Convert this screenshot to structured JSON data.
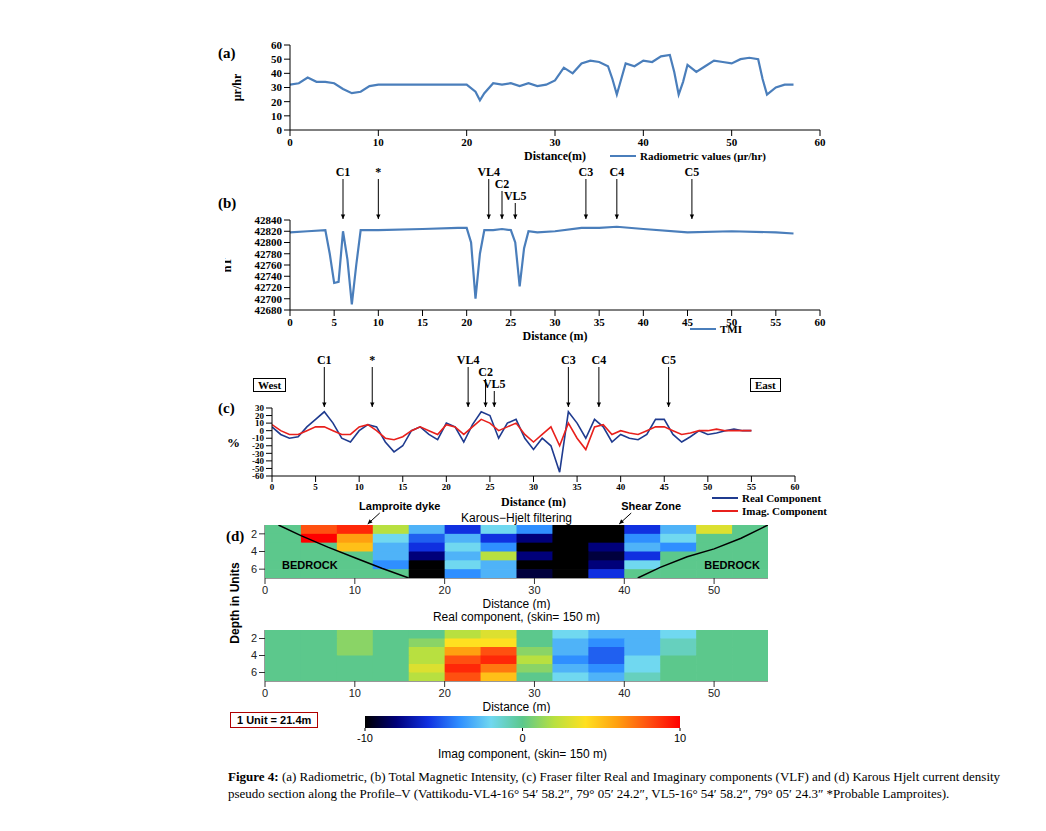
{
  "caption": {
    "label": "Figure 4:",
    "text": "(a) Radiometric, (b) Total Magnetic Intensity, (c) Fraser filter Real and Imaginary components (VLF) and (d) Karous Hjelt current density pseudo section along the Profile–V (Vattikodu-VL4-16° 54′ 58.2″, 79° 05′ 24.2″, VL5-16° 54′ 58.2″, 79° 05′ 24.3″ *Probable Lamproites)."
  },
  "chart_data": [
    {
      "type": "line",
      "title": "(a)",
      "x_label": "Distance(m)",
      "y_label": "μr/hr",
      "xlim": [
        0,
        60
      ],
      "xticks": [
        0,
        10,
        20,
        30,
        40,
        50,
        60
      ],
      "ylim": [
        0,
        60
      ],
      "yticks": [
        0,
        10,
        20,
        30,
        40,
        50,
        60
      ],
      "legend": "bottom right",
      "x": [
        0,
        1,
        2,
        3,
        4,
        5,
        6,
        7,
        8,
        9,
        10,
        12,
        14,
        16,
        18,
        20,
        21,
        21.5,
        22,
        23,
        24,
        25,
        26,
        27,
        28,
        29,
        30,
        31,
        32,
        33,
        34,
        35,
        36,
        36.5,
        37,
        37.5,
        38,
        39,
        40,
        41,
        42,
        43,
        43.5,
        44,
        44.5,
        45,
        46,
        47,
        48,
        49,
        50,
        51,
        52,
        53,
        53.5,
        54,
        55,
        56,
        57
      ],
      "series": [
        {
          "name": "Radiometric values (μr/hr)",
          "color": "#4a7ebb",
          "values": [
            32,
            33,
            37,
            34,
            34,
            33,
            29,
            26,
            27,
            31,
            32,
            32,
            32,
            32,
            32,
            32,
            27,
            21,
            26,
            33,
            32,
            33,
            31,
            33,
            31,
            32,
            35,
            44,
            40,
            47,
            49,
            48,
            45,
            36,
            25,
            36,
            47,
            45,
            49,
            48,
            52,
            53,
            41,
            25,
            34,
            46,
            41,
            45,
            49,
            48,
            47,
            50,
            51,
            50,
            36,
            25,
            30,
            32,
            32
          ]
        }
      ]
    },
    {
      "type": "line",
      "title": "(b)",
      "x_label": "Distance (m)",
      "y_label": "nT",
      "xlim": [
        0,
        60
      ],
      "xticks": [
        0,
        5,
        10,
        15,
        20,
        25,
        30,
        35,
        40,
        45,
        50,
        55,
        60
      ],
      "ylim": [
        42680,
        42840
      ],
      "yticks": [
        42680,
        42700,
        42720,
        42740,
        42760,
        42780,
        42800,
        42820,
        42840
      ],
      "legend": "bottom right",
      "x": [
        0,
        2,
        4,
        4.5,
        5,
        5.5,
        6,
        6.5,
        7,
        7.5,
        8,
        10,
        15,
        19,
        20,
        20.5,
        21,
        21.5,
        22,
        23,
        24,
        25,
        25.5,
        26,
        26.5,
        27,
        28,
        30,
        33,
        35,
        37,
        40,
        45,
        50,
        55,
        57
      ],
      "series": [
        {
          "name": "TMI",
          "color": "#4a7ebb",
          "values": [
            42818,
            42820,
            42822,
            42780,
            42728,
            42730,
            42820,
            42770,
            42690,
            42760,
            42822,
            42822,
            42824,
            42826,
            42826,
            42800,
            42700,
            42780,
            42822,
            42822,
            42824,
            42822,
            42800,
            42722,
            42790,
            42820,
            42818,
            42820,
            42826,
            42826,
            42828,
            42824,
            42818,
            42820,
            42818,
            42816
          ]
        }
      ],
      "annotations": [
        {
          "x": 6,
          "label": "C1"
        },
        {
          "x": 10,
          "label": "*"
        },
        {
          "x": 22.5,
          "label": "VL4"
        },
        {
          "x": 24,
          "label": "C2"
        },
        {
          "x": 25.5,
          "label": "VL5"
        },
        {
          "x": 33.5,
          "label": "C3"
        },
        {
          "x": 37,
          "label": "C4"
        },
        {
          "x": 45.5,
          "label": "C5"
        }
      ]
    },
    {
      "type": "line",
      "title": "(c)",
      "x_label": "Distance (m)",
      "y_label": "%",
      "side_labels": [
        "West",
        "East"
      ],
      "xlim": [
        0,
        60
      ],
      "xticks": [
        0,
        5,
        10,
        15,
        20,
        25,
        30,
        35,
        40,
        45,
        50,
        55,
        60
      ],
      "ylim": [
        -60,
        30
      ],
      "yticks": [
        -60,
        -50,
        -40,
        -30,
        -20,
        -10,
        0,
        10,
        20,
        30
      ],
      "legend": "bottom right",
      "x": [
        0,
        1,
        2,
        3,
        4,
        5,
        6,
        7,
        8,
        9,
        10,
        11,
        12,
        13,
        14,
        15,
        16,
        17,
        18,
        19,
        20,
        21,
        22,
        23,
        24,
        25,
        26,
        27,
        28,
        29,
        30,
        31,
        32,
        33,
        34,
        35,
        36,
        37,
        38,
        39,
        40,
        41,
        42,
        43,
        44,
        45,
        46,
        47,
        48,
        49,
        50,
        51,
        52,
        53,
        54,
        55
      ],
      "series": [
        {
          "name": "Real Component",
          "color": "#1f3b8f",
          "values": [
            5,
            -5,
            -10,
            -8,
            5,
            15,
            25,
            10,
            -10,
            -15,
            0,
            8,
            5,
            -15,
            -28,
            -20,
            0,
            5,
            -5,
            -12,
            10,
            5,
            -15,
            8,
            25,
            20,
            -10,
            10,
            15,
            -10,
            -25,
            -10,
            -20,
            -55,
            25,
            10,
            -10,
            15,
            5,
            -15,
            -5,
            -10,
            -12,
            -5,
            15,
            15,
            -5,
            -15,
            -8,
            0,
            -5,
            -3,
            0,
            2,
            0,
            0
          ]
        },
        {
          "name": "Imag. Component",
          "color": "#e8201c",
          "values": [
            8,
            0,
            -5,
            -5,
            0,
            5,
            5,
            0,
            -5,
            -5,
            5,
            8,
            0,
            -10,
            -12,
            -8,
            0,
            5,
            0,
            -5,
            8,
            5,
            -5,
            5,
            15,
            10,
            0,
            5,
            10,
            -5,
            -15,
            -5,
            5,
            -20,
            10,
            -10,
            -25,
            5,
            8,
            -5,
            0,
            -3,
            -5,
            0,
            5,
            5,
            0,
            -5,
            -3,
            0,
            0,
            2,
            0,
            0,
            0,
            0
          ]
        }
      ],
      "annotations": [
        {
          "x": 6,
          "label": "C1"
        },
        {
          "x": 11.5,
          "label": "*"
        },
        {
          "x": 22.5,
          "label": "VL4"
        },
        {
          "x": 24.5,
          "label": "C2"
        },
        {
          "x": 25.5,
          "label": "VL5"
        },
        {
          "x": 34,
          "label": "C3"
        },
        {
          "x": 37.5,
          "label": "C4"
        },
        {
          "x": 45.5,
          "label": "C5"
        }
      ]
    },
    {
      "type": "heatmap",
      "title": "(d)",
      "subtitle": "Karous−Hjelt filtering",
      "caption": "Real component, (skin= 150 m)",
      "x_label": "Distance (m)",
      "y_label": "Depth in Units",
      "xlim": [
        0,
        56
      ],
      "xticks": [
        0,
        10,
        20,
        30,
        40,
        50
      ],
      "ylim": [
        1,
        7
      ],
      "yticks": [
        2,
        4,
        6
      ],
      "x": [
        2,
        6,
        10,
        14,
        18,
        22,
        26,
        30,
        34,
        38,
        42,
        46,
        50,
        54
      ],
      "y": [
        1.5,
        2.5,
        3.5,
        4.5,
        5.5,
        6.5
      ],
      "values": [
        [
          0,
          8,
          9,
          2,
          -3,
          -6,
          -2,
          -4,
          -10,
          -10,
          -6,
          -3,
          3,
          0
        ],
        [
          0,
          10,
          6,
          -2,
          -5,
          -3,
          -6,
          -8,
          -10,
          -10,
          -4,
          -2,
          0,
          0
        ],
        [
          0,
          0,
          5,
          -3,
          -6,
          -2,
          -4,
          -10,
          -10,
          -8,
          -3,
          -4,
          0,
          0
        ],
        [
          0,
          0,
          0,
          -3,
          -8,
          -3,
          2,
          -8,
          -10,
          -9,
          -6,
          0,
          0,
          0
        ],
        [
          0,
          0,
          0,
          -4,
          -10,
          -2,
          -3,
          -10,
          -10,
          -8,
          -2,
          0,
          0,
          0
        ],
        [
          0,
          0,
          0,
          0,
          -10,
          -4,
          -3,
          -9,
          -10,
          -6,
          0,
          0,
          0,
          0
        ]
      ],
      "boundaries": [
        {
          "x": [
            1.5,
            4,
            7,
            10,
            13,
            16
          ],
          "y": [
            1,
            2.2,
            3.5,
            4.7,
            5.9,
            7
          ]
        },
        {
          "x": [
            41.5,
            44,
            47,
            50,
            53,
            56
          ],
          "y": [
            7,
            5.8,
            4.6,
            3.7,
            2.5,
            1
          ]
        }
      ],
      "region_labels": [
        {
          "x": 5,
          "y": 5.6,
          "text": "BEDROCK"
        },
        {
          "x": 52,
          "y": 5.6,
          "text": "BEDROCK"
        }
      ],
      "annotations": [
        {
          "x": 15,
          "label": "Lamproite dyke"
        },
        {
          "x": 43,
          "label": "Shear Zone"
        }
      ]
    },
    {
      "type": "heatmap",
      "caption": "Imag component, (skin= 150 m)",
      "x_label": "Distance (m)",
      "note": "1 Unit = 21.4m",
      "xlim": [
        0,
        56
      ],
      "xticks": [
        0,
        10,
        20,
        30,
        40,
        50
      ],
      "ylim": [
        1,
        7
      ],
      "yticks": [
        2,
        4,
        6
      ],
      "x": [
        2,
        6,
        10,
        14,
        18,
        22,
        26,
        30,
        34,
        38,
        42,
        46,
        50,
        54
      ],
      "y": [
        1.5,
        2.5,
        3.5,
        4.5,
        5.5,
        6.5
      ],
      "values": [
        [
          0,
          0,
          1,
          0,
          0,
          2,
          3,
          0,
          -2,
          -3,
          -3,
          -2,
          0,
          0
        ],
        [
          0,
          0,
          1,
          0,
          1,
          4,
          4,
          0,
          -3,
          -4,
          -3,
          -1,
          0,
          0
        ],
        [
          0,
          0,
          1,
          0,
          2,
          6,
          8,
          1,
          -3,
          -5,
          -3,
          -1,
          0,
          0
        ],
        [
          0,
          0,
          0,
          0,
          2,
          8,
          9,
          2,
          -4,
          -5,
          -2,
          0,
          0,
          0
        ],
        [
          0,
          0,
          0,
          0,
          3,
          9,
          7,
          1,
          -3,
          -4,
          -2,
          0,
          0,
          0
        ],
        [
          0,
          0,
          0,
          0,
          2,
          8,
          5,
          0,
          -2,
          -3,
          -1,
          0,
          0,
          0
        ]
      ],
      "colorbar": {
        "range": [
          -10,
          10
        ],
        "ticks": [
          -10,
          0,
          10
        ]
      }
    }
  ]
}
